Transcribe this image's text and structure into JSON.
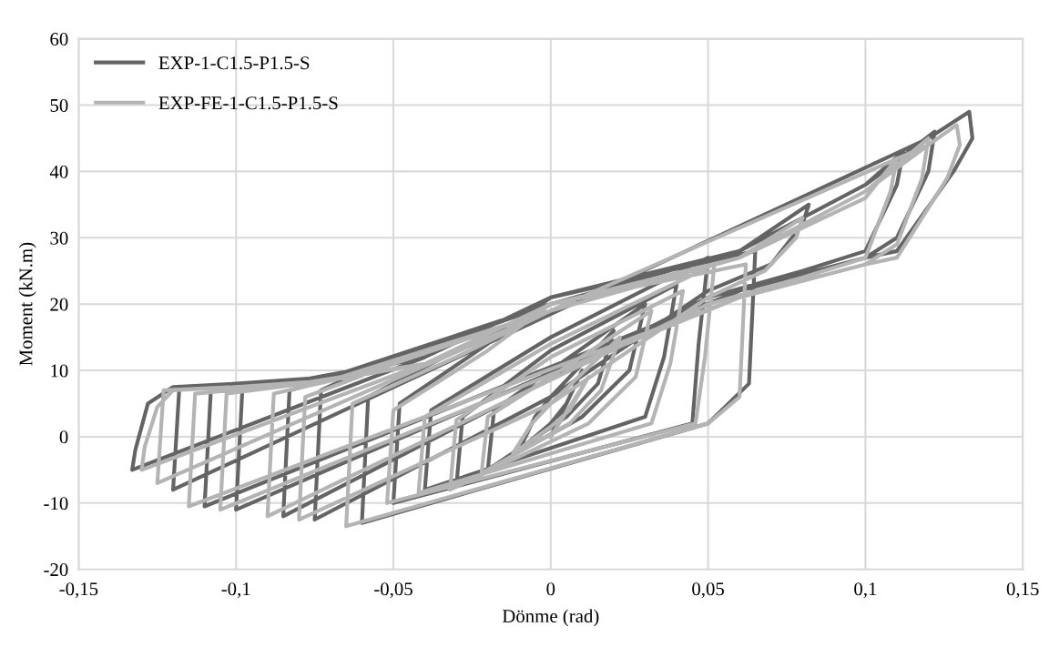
{
  "chart_data": {
    "type": "line",
    "xlabel": "Dönme (rad)",
    "ylabel": "Moment (kN.m)",
    "xlim": [
      -0.15,
      0.15
    ],
    "ylim": [
      -20,
      60
    ],
    "xticks": [
      {
        "value": -0.15,
        "label": "-0,15"
      },
      {
        "value": -0.1,
        "label": "-0,1"
      },
      {
        "value": -0.05,
        "label": "-0,05"
      },
      0,
      {
        "value": 0.05,
        "label": "0,05"
      },
      {
        "value": 0.1,
        "label": "0,1"
      },
      {
        "value": 0.15,
        "label": "0,15"
      }
    ],
    "yticks": [
      -20,
      -10,
      0,
      10,
      20,
      30,
      40,
      50,
      60
    ],
    "grid": true,
    "legend": "top left",
    "marker": "none",
    "line_style": "solid",
    "series": [
      {
        "name": "EXP-1-C1.5-P1.5-S",
        "color": "#646464",
        "x": [
          0,
          0.01,
          0.005,
          0,
          -0.01,
          -0.005,
          0,
          0.02,
          0.015,
          0.005,
          -0.02,
          -0.018,
          0,
          0.03,
          0.025,
          0.01,
          -0.03,
          -0.028,
          0,
          0.04,
          0.036,
          0.03,
          -0.04,
          -0.038,
          0,
          0.05,
          0.047,
          0.045,
          -0.05,
          -0.048,
          -0.02,
          0,
          0.065,
          0.063,
          0.05,
          -0.06,
          -0.058,
          -0.03,
          0,
          0.06,
          0.082,
          0.08,
          0.07,
          0.05,
          0,
          -0.075,
          -0.073,
          -0.05,
          0,
          0.06,
          0.1,
          0.112,
          0.11,
          0.1,
          0.08,
          0.05,
          -0.085,
          -0.083,
          -0.06,
          0,
          0.06,
          0.1,
          0.122,
          0.12,
          0.11,
          0.1,
          0.06,
          -0.1,
          -0.098,
          -0.07,
          0,
          0.06,
          0.1,
          0.12,
          0.133,
          0.134,
          0.128,
          0.11,
          0.1,
          0.06,
          -0.11,
          -0.108,
          -0.08,
          -0.04,
          0,
          0.06,
          0.1,
          0.12,
          -0.12,
          -0.118,
          -0.1,
          -0.07,
          -0.04,
          -0.133,
          -0.132,
          -0.128,
          -0.12,
          -0.1
        ],
        "values": [
          0,
          10,
          5,
          2,
          -2,
          3,
          6,
          16,
          8,
          3,
          -5,
          4,
          10,
          20,
          10,
          3,
          -7.5,
          3,
          13,
          23,
          12,
          3,
          -8,
          4,
          15,
          27,
          14,
          2,
          -10,
          5,
          14,
          21,
          28,
          8,
          2,
          -13,
          6,
          13,
          20,
          28,
          35,
          32,
          26,
          22,
          6,
          -12.5,
          7,
          12,
          20,
          28,
          38,
          43,
          38,
          28,
          25,
          21,
          -12,
          7,
          10,
          20,
          28,
          38,
          46,
          40,
          30,
          27,
          22,
          -11,
          7,
          9,
          20,
          28,
          38,
          45,
          49,
          45,
          40,
          28,
          27,
          22,
          -10.5,
          7,
          8.5,
          12,
          21,
          28,
          38,
          45,
          -8,
          7.5,
          8,
          9,
          12,
          -5,
          -2,
          5,
          7.5,
          8
        ]
      },
      {
        "name": "EXP-FE-1-C1.5-P1.5-S",
        "color": "#b4b4b4",
        "x": [
          0,
          0.012,
          0.006,
          0,
          -0.012,
          -0.006,
          0,
          0.022,
          0.016,
          0.006,
          -0.022,
          -0.02,
          0,
          0.032,
          0.027,
          0.012,
          -0.032,
          -0.03,
          0,
          0.042,
          0.038,
          0.032,
          -0.042,
          -0.04,
          0,
          0.052,
          0.049,
          0.046,
          -0.052,
          -0.05,
          -0.02,
          0,
          0.062,
          0.06,
          0.05,
          -0.065,
          -0.063,
          -0.03,
          0,
          0.06,
          0.08,
          0.078,
          0.068,
          0.05,
          0,
          -0.08,
          -0.078,
          -0.05,
          0,
          0.06,
          0.1,
          0.11,
          0.108,
          0.1,
          0.08,
          0.05,
          -0.09,
          -0.088,
          -0.06,
          0,
          0.06,
          0.1,
          0.12,
          0.118,
          0.11,
          0.1,
          0.06,
          -0.105,
          -0.103,
          -0.07,
          0,
          0.06,
          0.1,
          0.12,
          0.129,
          0.13,
          0.126,
          0.11,
          0.1,
          0.06,
          -0.115,
          -0.113,
          -0.08,
          -0.04,
          0,
          0.06,
          0.1,
          0.12,
          -0.125,
          -0.123,
          -0.1,
          -0.07,
          -0.04,
          -0.13,
          -0.129,
          -0.125,
          -0.12,
          -0.1
        ],
        "values": [
          0,
          9,
          4,
          1.5,
          -2.5,
          2,
          5,
          15,
          7,
          2,
          -5.5,
          3,
          9,
          19,
          9,
          2,
          -8,
          2.5,
          12,
          22,
          11,
          2,
          -8.5,
          3,
          14,
          26,
          12,
          2,
          -10,
          4,
          13,
          20,
          26,
          6,
          2,
          -13.5,
          5,
          12,
          19,
          27,
          33,
          30,
          25,
          21,
          5,
          -12.5,
          6,
          11,
          19,
          27,
          36,
          42,
          37,
          27,
          24,
          20,
          -12,
          6.5,
          9.5,
          19,
          27,
          37,
          45,
          39,
          29,
          26,
          21,
          -11,
          6.5,
          8.5,
          19,
          27,
          37,
          44,
          47,
          44,
          39,
          27,
          26,
          21,
          -10.5,
          6.5,
          8,
          11,
          20,
          27,
          37,
          44,
          -7,
          7,
          7.5,
          8.5,
          11,
          -5,
          -1.5,
          4.5,
          7,
          7.5
        ]
      }
    ]
  }
}
